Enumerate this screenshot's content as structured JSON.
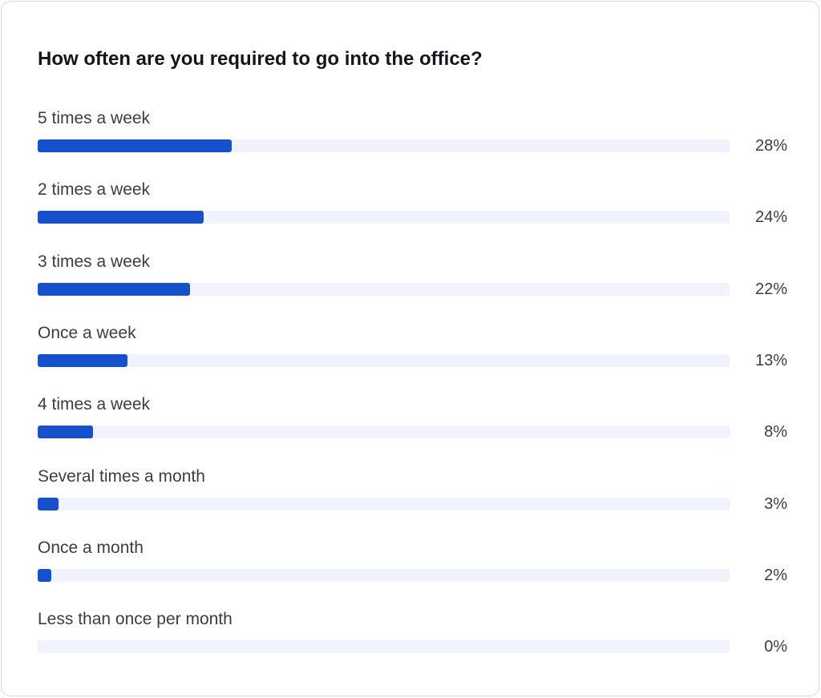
{
  "chart_data": {
    "type": "bar",
    "orientation": "horizontal",
    "title": "How often are you required to go into the office?",
    "categories": [
      "5 times a week",
      "2 times a week",
      "3 times a week",
      "Once a week",
      "4 times a week",
      "Several times a month",
      "Once a month",
      "Less than once per month"
    ],
    "values": [
      28,
      24,
      22,
      13,
      8,
      3,
      2,
      0
    ],
    "value_labels": [
      "28%",
      "24%",
      "22%",
      "13%",
      "8%",
      "3%",
      "2%",
      "0%"
    ],
    "xlim": [
      0,
      100
    ],
    "xlabel": "",
    "ylabel": "",
    "colors": {
      "bar": "#1650cc",
      "track": "#f0f3fb"
    }
  }
}
